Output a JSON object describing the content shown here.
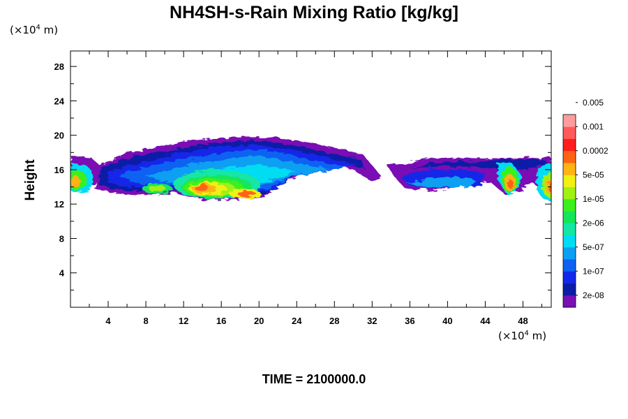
{
  "chart_data": {
    "type": "heatmap",
    "title": "NH4SH-s-Rain Mixing Ratio [kg/kg]",
    "ylabel": "Height",
    "x_unit": "(×10",
    "x_unit_exp": "4",
    "x_unit_tail": " m)",
    "y_unit": "(×10",
    "y_unit_exp": "4",
    "y_unit_tail": " m)",
    "time_label": "TIME = 2100000.0",
    "xlim": [
      0,
      51
    ],
    "ylim": [
      0,
      29.8
    ],
    "x_ticks": [
      "4",
      "8",
      "12",
      "16",
      "20",
      "24",
      "28",
      "32",
      "36",
      "40",
      "44",
      "48"
    ],
    "y_ticks": [
      "4",
      "8",
      "12",
      "16",
      "20",
      "24",
      "28"
    ],
    "colorbar": {
      "colors": [
        "#7a10b4",
        "#0c1ea6",
        "#1328e8",
        "#0d62f2",
        "#0d9ff2",
        "#00dcf2",
        "#14e6a6",
        "#14e65a",
        "#3cf01e",
        "#a0f014",
        "#f0f014",
        "#ffb414",
        "#ff6414",
        "#ff1e1e",
        "#ff5a5a",
        "#ff9c9c"
      ],
      "labels": [
        "2e-08",
        "1e-07",
        "5e-07",
        "2e-06",
        "1e-05",
        "5e-05",
        "0.0002",
        "0.001",
        "0.005"
      ]
    },
    "field": {
      "levels_count": 16,
      "features": [
        {
          "kind": "band",
          "x0": 3,
          "x1": 33,
          "y": 13.2,
          "top": 19.2,
          "note": "main west layer"
        },
        {
          "kind": "band",
          "x0": 34.5,
          "x1": 44,
          "y": 13.8,
          "top": 16.0,
          "note": "east shallow layer"
        }
      ]
    }
  }
}
